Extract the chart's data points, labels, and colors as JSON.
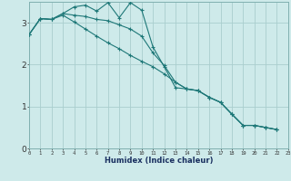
{
  "xlabel": "Humidex (Indice chaleur)",
  "background_color": "#ceeaea",
  "grid_color": "#aacece",
  "line_color": "#1e7878",
  "xlim": [
    0,
    23
  ],
  "ylim": [
    0,
    3.5
  ],
  "yticks": [
    0,
    1,
    2,
    3
  ],
  "xticks": [
    0,
    1,
    2,
    3,
    4,
    5,
    6,
    7,
    8,
    9,
    10,
    11,
    12,
    13,
    14,
    15,
    16,
    17,
    18,
    19,
    20,
    21,
    22,
    23
  ],
  "line1": {
    "x": [
      0,
      1,
      2,
      3,
      4,
      5,
      6,
      7,
      8,
      9,
      10,
      11,
      12,
      13,
      14,
      15,
      16,
      17,
      18,
      19,
      20,
      21,
      22
    ],
    "y": [
      2.72,
      3.1,
      3.08,
      3.22,
      3.38,
      3.42,
      3.28,
      3.48,
      3.12,
      3.48,
      3.3,
      2.42,
      1.95,
      1.45,
      1.42,
      1.38,
      1.22,
      1.1,
      0.82,
      0.55,
      0.55,
      0.5,
      0.45
    ]
  },
  "line2": {
    "x": [
      0,
      1,
      2,
      3,
      4,
      5,
      6,
      7,
      8,
      9,
      10,
      11,
      12,
      13,
      14,
      15,
      16,
      17,
      18,
      19,
      20,
      21,
      22
    ],
    "y": [
      2.72,
      3.1,
      3.08,
      3.22,
      3.18,
      3.15,
      3.08,
      3.05,
      2.95,
      2.85,
      2.68,
      2.28,
      1.98,
      1.58,
      1.42,
      1.38,
      1.22,
      1.1,
      0.82,
      0.55,
      0.55,
      0.5,
      0.45
    ]
  },
  "line3": {
    "x": [
      0,
      1,
      2,
      3,
      4,
      5,
      6,
      7,
      8,
      9,
      10,
      11,
      12,
      13,
      14,
      15,
      16,
      17,
      18,
      19,
      20,
      21,
      22
    ],
    "y": [
      2.72,
      3.1,
      3.08,
      3.18,
      3.02,
      2.85,
      2.68,
      2.52,
      2.38,
      2.22,
      2.08,
      1.95,
      1.78,
      1.58,
      1.42,
      1.38,
      1.22,
      1.1,
      0.82,
      0.55,
      0.55,
      0.5,
      0.45
    ]
  }
}
